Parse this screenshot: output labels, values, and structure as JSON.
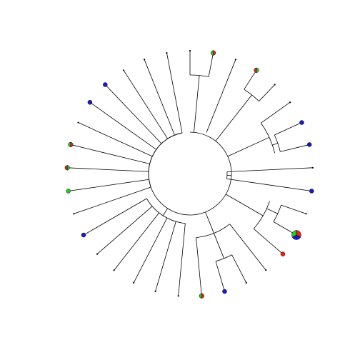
{
  "colors": {
    "branch": "#000000",
    "red": "#e8221a",
    "green": "#22cc22",
    "blue": "#1a1acc",
    "tip_outline": "#000000"
  },
  "tree": {
    "tips": [
      {
        "id": "t1",
        "state": "none"
      },
      {
        "id": "t2",
        "state": "mixed",
        "slices": [
          {
            "color": "red",
            "fraction": 0.5
          },
          {
            "color": "green",
            "fraction": 0.5
          }
        ]
      },
      {
        "id": "t3",
        "state": "none"
      },
      {
        "id": "t4",
        "state": "mixed",
        "slices": [
          {
            "color": "green",
            "fraction": 0.5
          },
          {
            "color": "red",
            "fraction": 0.5
          }
        ]
      },
      {
        "id": "t5",
        "state": "none"
      },
      {
        "id": "t6",
        "state": "none"
      },
      {
        "id": "t7",
        "state": "blue"
      },
      {
        "id": "t8",
        "state": "blue"
      },
      {
        "id": "t9",
        "state": "none"
      },
      {
        "id": "t10",
        "state": "blue"
      },
      {
        "id": "t11",
        "state": "none"
      },
      {
        "id": "t12",
        "state": "big-pie",
        "slices": [
          {
            "color": "red",
            "fraction": 0.33
          },
          {
            "color": "blue",
            "fraction": 0.34
          },
          {
            "color": "green",
            "fraction": 0.33
          }
        ]
      },
      {
        "id": "t13",
        "state": "red"
      },
      {
        "id": "t14",
        "state": "none"
      },
      {
        "id": "t15",
        "state": "none"
      },
      {
        "id": "t16",
        "state": "blue"
      },
      {
        "id": "t17",
        "state": "mixed",
        "slices": [
          {
            "color": "red",
            "fraction": 0.5
          },
          {
            "color": "green",
            "fraction": 0.5
          }
        ]
      },
      {
        "id": "t18",
        "state": "none"
      },
      {
        "id": "t19",
        "state": "none"
      },
      {
        "id": "t20",
        "state": "none"
      },
      {
        "id": "t21",
        "state": "none"
      },
      {
        "id": "t22",
        "state": "none"
      },
      {
        "id": "t23",
        "state": "blue"
      },
      {
        "id": "t24",
        "state": "none"
      },
      {
        "id": "t25",
        "state": "green"
      },
      {
        "id": "t26",
        "state": "mixed",
        "slices": [
          {
            "color": "green",
            "fraction": 0.5
          },
          {
            "color": "red",
            "fraction": 0.5
          }
        ]
      },
      {
        "id": "t27",
        "state": "mixed",
        "slices": [
          {
            "color": "red",
            "fraction": 0.5
          },
          {
            "color": "green",
            "fraction": 0.5
          }
        ]
      },
      {
        "id": "t28",
        "state": "none"
      },
      {
        "id": "t29",
        "state": "blue"
      },
      {
        "id": "t30",
        "state": "blue"
      },
      {
        "id": "t31",
        "state": "none"
      },
      {
        "id": "t32",
        "state": "none"
      },
      {
        "id": "t33",
        "state": "none"
      }
    ]
  }
}
